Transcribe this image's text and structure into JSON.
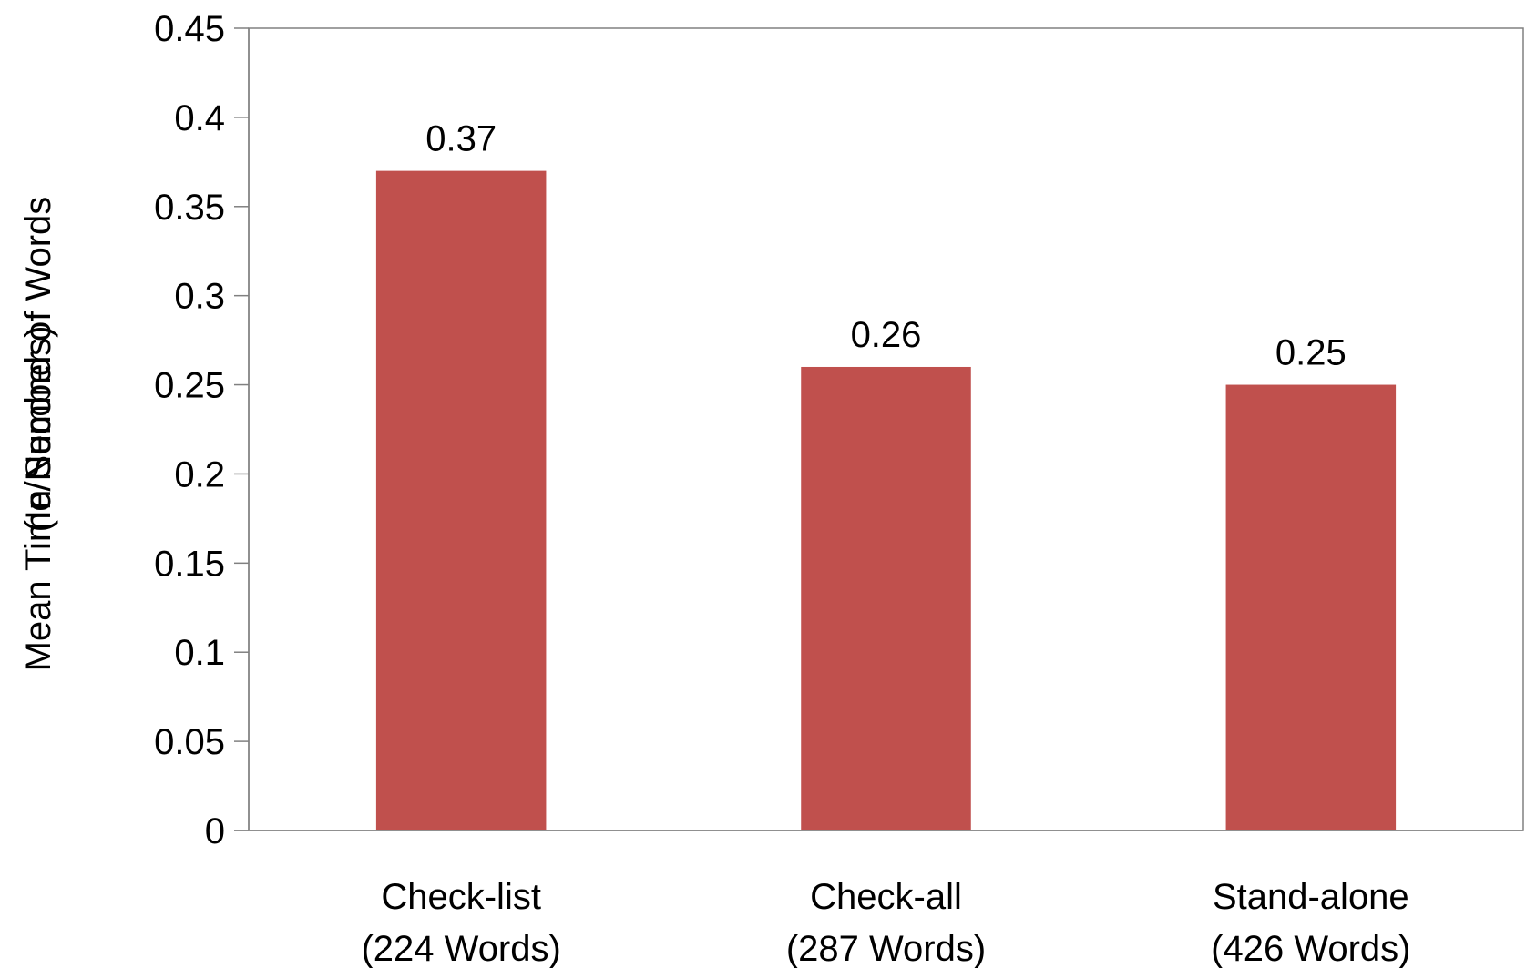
{
  "chart_data": {
    "type": "bar",
    "categories": [
      [
        "Check-list",
        "(224 Words)"
      ],
      [
        "Check-all",
        "(287 Words)"
      ],
      [
        "Stand-alone",
        "(426 Words)"
      ]
    ],
    "values": [
      0.37,
      0.26,
      0.25
    ],
    "data_labels": [
      "0.37",
      "0.26",
      "0.25"
    ],
    "title": "",
    "xlabel": "",
    "ylabel": [
      "Mean Time/Number of Words",
      "(In Seconds)"
    ],
    "ylim": [
      0,
      0.45
    ],
    "yticks": [
      0,
      0.05,
      0.1,
      0.15,
      0.2,
      0.25,
      0.3,
      0.35,
      0.4,
      0.45
    ],
    "ytick_labels": [
      "0",
      "0.05",
      "0.1",
      "0.15",
      "0.2",
      "0.25",
      "0.3",
      "0.35",
      "0.4",
      "0.45"
    ],
    "bar_color": "#C0504D",
    "grid": false,
    "legend": "none"
  }
}
